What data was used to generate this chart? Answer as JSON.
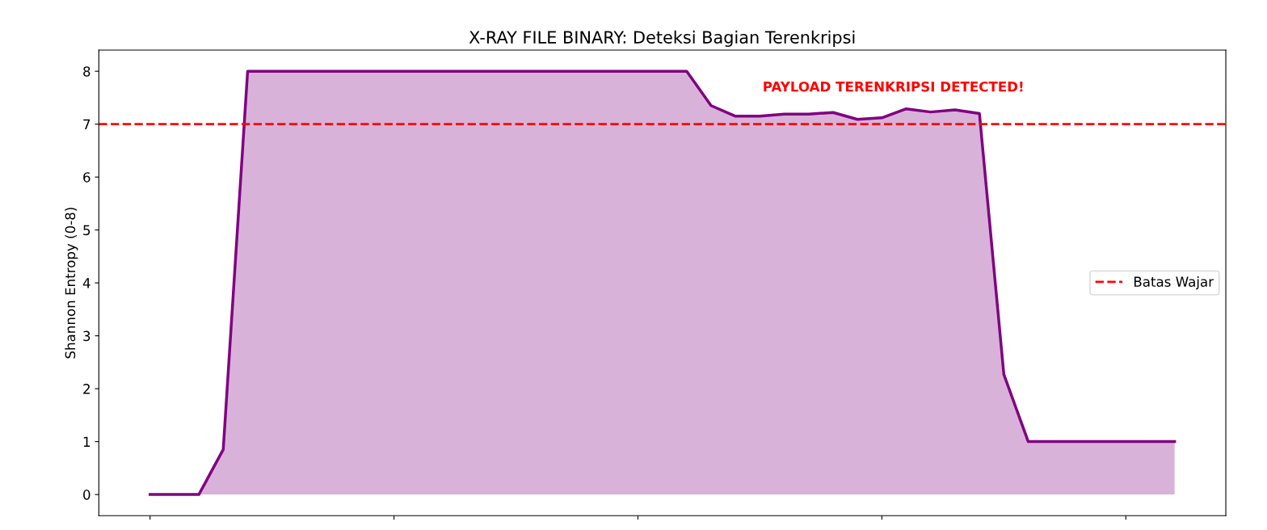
{
  "chart_data": {
    "type": "area",
    "title": "X-RAY FILE BINARY: Deteksi Bagian Terenkripsi",
    "ylabel": "Shannon Entropy (0-8)",
    "categories": [
      null,
      null,
      null,
      null,
      null,
      null,
      null,
      null,
      null,
      null,
      null,
      null,
      null,
      null,
      null,
      null,
      null,
      null,
      null,
      null,
      null,
      null,
      null,
      null,
      null,
      null,
      null,
      null,
      null,
      null,
      null,
      null,
      null,
      null,
      null,
      null,
      null,
      null,
      null,
      null,
      null,
      null,
      null
    ],
    "series": [
      {
        "color": "#800080",
        "values": [
          0,
          0,
          0,
          0.85,
          8,
          8,
          8,
          8,
          8,
          8,
          8,
          8,
          8,
          8,
          8,
          8,
          8,
          8,
          8,
          8,
          8,
          8,
          8,
          7.35,
          7.15,
          7.15,
          7.19,
          7.19,
          7.22,
          7.09,
          7.12,
          7.29,
          7.23,
          7.27,
          7.2,
          2.27,
          1,
          1,
          1,
          1,
          1,
          1,
          1
        ]
      }
    ],
    "ylim": [
      -0.4,
      8.4
    ],
    "yticks": [
      0,
      1,
      2,
      3,
      4,
      5,
      6,
      7,
      8
    ],
    "tick_labels": "y",
    "ref_lines": [
      {
        "axis": "y",
        "value": 7,
        "label": "Batas Wajar",
        "color": "#ff0000",
        "line_style": "dashed"
      }
    ],
    "annotations": [
      "PAYLOAD TERENKRIPSI DETECTED!"
    ],
    "legend": "right",
    "grid": false
  }
}
